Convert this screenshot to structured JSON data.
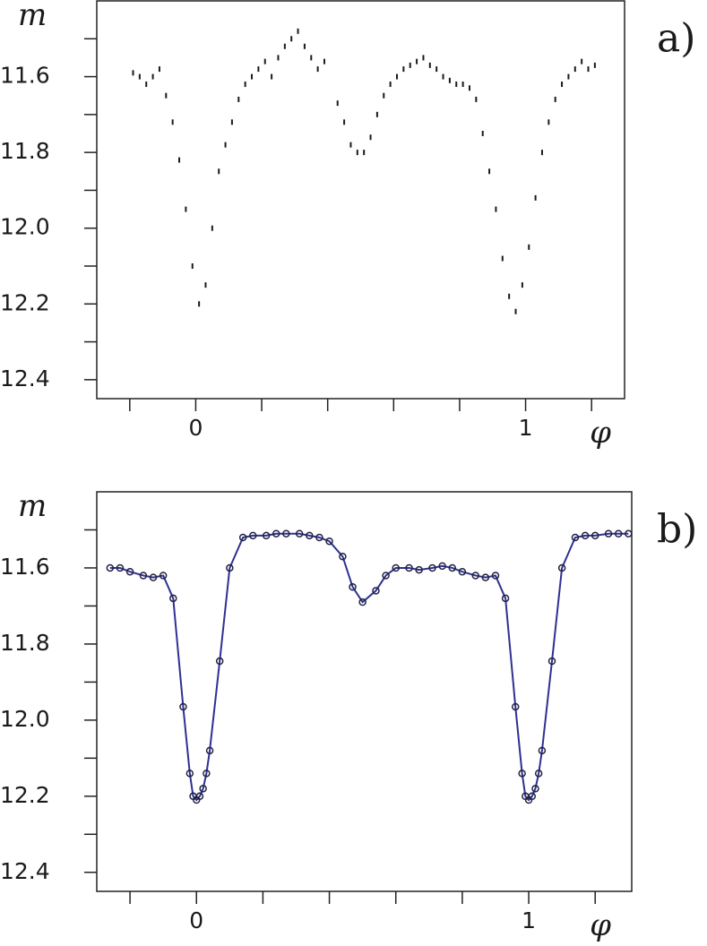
{
  "chart_data": [
    {
      "type": "scatter",
      "panel_label": "a)",
      "y_label": "m",
      "x_label": "φ",
      "color": "#1a1a1a",
      "x": [
        -0.19,
        -0.17,
        -0.15,
        -0.13,
        -0.11,
        -0.09,
        -0.07,
        -0.05,
        -0.03,
        -0.01,
        0.01,
        0.03,
        0.05,
        0.07,
        0.09,
        0.11,
        0.13,
        0.15,
        0.17,
        0.19,
        0.21,
        0.23,
        0.25,
        0.27,
        0.29,
        0.31,
        0.33,
        0.35,
        0.37,
        0.39,
        0.43,
        0.45,
        0.47,
        0.49,
        0.51,
        0.53,
        0.55,
        0.57,
        0.59,
        0.61,
        0.63,
        0.65,
        0.67,
        0.69,
        0.71,
        0.73,
        0.75,
        0.77,
        0.79,
        0.81,
        0.83,
        0.85,
        0.87,
        0.89,
        0.91,
        0.93,
        0.95,
        0.97,
        0.99,
        1.01,
        1.03,
        1.05,
        1.07,
        1.09,
        1.11,
        1.13,
        1.15,
        1.17,
        1.19,
        1.21
      ],
      "values": [
        11.59,
        11.6,
        11.62,
        11.6,
        11.58,
        11.65,
        11.72,
        11.82,
        11.95,
        12.1,
        12.2,
        12.15,
        12.0,
        11.85,
        11.78,
        11.72,
        11.66,
        11.62,
        11.6,
        11.58,
        11.56,
        11.6,
        11.55,
        11.52,
        11.5,
        11.48,
        11.52,
        11.55,
        11.58,
        11.56,
        11.67,
        11.72,
        11.78,
        11.8,
        11.8,
        11.76,
        11.7,
        11.65,
        11.62,
        11.6,
        11.58,
        11.57,
        11.56,
        11.55,
        11.57,
        11.58,
        11.6,
        11.61,
        11.62,
        11.62,
        11.63,
        11.66,
        11.75,
        11.85,
        11.95,
        12.08,
        12.18,
        12.22,
        12.15,
        12.05,
        11.92,
        11.8,
        11.72,
        11.66,
        11.62,
        11.6,
        11.58,
        11.56,
        11.58,
        11.57
      ],
      "xlim": [
        -0.3,
        1.3
      ],
      "ylim": [
        12.45,
        11.4
      ],
      "xticks": [
        0,
        1
      ],
      "xminor_ticks": [
        -0.2,
        0.2,
        0.4,
        0.6,
        0.8,
        1.2
      ],
      "yticks": [
        11.6,
        11.8,
        {
          "value": 12.0,
          "label": "12.0"
        },
        12.2,
        12.4
      ],
      "yminor_ticks": [
        11.5,
        11.7,
        11.9,
        12.1,
        12.3
      ]
    },
    {
      "type": "line",
      "panel_label": "b)",
      "y_label": "m",
      "x_label": "φ",
      "color": "#2e3192",
      "marker_color": "#222244",
      "x": [
        -0.26,
        -0.23,
        -0.2,
        -0.16,
        -0.13,
        -0.1,
        -0.07,
        -0.04,
        -0.02,
        -0.01,
        0.0,
        0.01,
        0.02,
        0.03,
        0.04,
        0.07,
        0.1,
        0.14,
        0.17,
        0.21,
        0.24,
        0.27,
        0.31,
        0.34,
        0.37,
        0.4,
        0.44,
        0.47,
        0.5,
        0.54,
        0.57,
        0.6,
        0.64,
        0.67,
        0.71,
        0.74,
        0.77,
        0.8,
        0.84,
        0.87,
        0.9,
        0.93,
        0.96,
        0.98,
        0.99,
        1.0,
        1.01,
        1.02,
        1.03,
        1.04,
        1.07,
        1.1,
        1.14,
        1.17,
        1.2,
        1.24,
        1.27,
        1.3
      ],
      "values": [
        11.6,
        11.6,
        11.61,
        11.62,
        11.625,
        11.62,
        11.68,
        11.965,
        12.14,
        12.2,
        12.21,
        12.2,
        12.18,
        12.14,
        12.08,
        11.845,
        11.6,
        11.52,
        11.515,
        11.515,
        11.51,
        11.51,
        11.51,
        11.515,
        11.52,
        11.53,
        11.57,
        11.65,
        11.69,
        11.66,
        11.62,
        11.6,
        11.6,
        11.605,
        11.6,
        11.595,
        11.6,
        11.61,
        11.62,
        11.625,
        11.62,
        11.68,
        11.965,
        12.14,
        12.2,
        12.21,
        12.2,
        12.18,
        12.14,
        12.08,
        11.845,
        11.6,
        11.52,
        11.515,
        11.515,
        11.51,
        11.51,
        11.51
      ],
      "xlim": [
        -0.3,
        1.31
      ],
      "ylim": [
        12.45,
        11.4
      ],
      "xticks": [
        0,
        1
      ],
      "xminor_ticks": [
        -0.2,
        0.2,
        0.4,
        0.6,
        0.8,
        1.2
      ],
      "yticks": [
        11.6,
        11.8,
        {
          "value": 12.0,
          "label": "12.0"
        },
        12.2,
        12.4
      ],
      "yminor_ticks": [
        11.5,
        11.7,
        11.9,
        12.1,
        12.3
      ]
    }
  ]
}
